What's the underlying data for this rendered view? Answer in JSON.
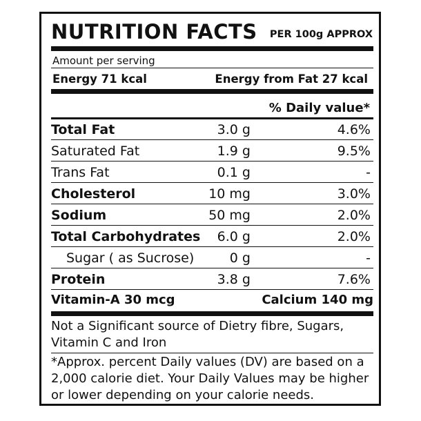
{
  "header": {
    "title": "NUTRITION FACTS",
    "per": "PER 100g APPROX"
  },
  "serving_label": "Amount per serving",
  "energy": "Energy 71 kcal",
  "energy_from_fat": "Energy from Fat 27 kcal",
  "dv_header": "% Daily value*",
  "rows": [
    {
      "label": "Total Fat",
      "amount": "3.0 g",
      "dv": "4.6%"
    },
    {
      "label": "Saturated Fat",
      "amount": "1.9 g",
      "dv": "9.5%"
    },
    {
      "label": "Trans Fat",
      "amount": "0.1 g",
      "dv": "-"
    },
    {
      "label": "Cholesterol",
      "amount": "10 mg",
      "dv": "3.0%"
    },
    {
      "label": "Sodium",
      "amount": "50 mg",
      "dv": "2.0%"
    },
    {
      "label": "Total Carbohydrates",
      "amount": "6.0 g",
      "dv": "2.0%"
    },
    {
      "label": "Sugar ( as Sucrose)",
      "amount": "0 g",
      "dv": "-"
    },
    {
      "label": "Protein",
      "amount": "3.8 g",
      "dv": "7.6%"
    }
  ],
  "vitamin": "Vitamin-A 30 mcg",
  "calcium": "Calcium 140 mg",
  "note": "Not a Significant source of Dietry fibre, Sugars, Vitamin C and Iron",
  "footnote": "*Approx. percent Daily values (DV) are based on a 2,000 calorie diet. Your Daily Values may be higher or lower depending on your calorie needs."
}
